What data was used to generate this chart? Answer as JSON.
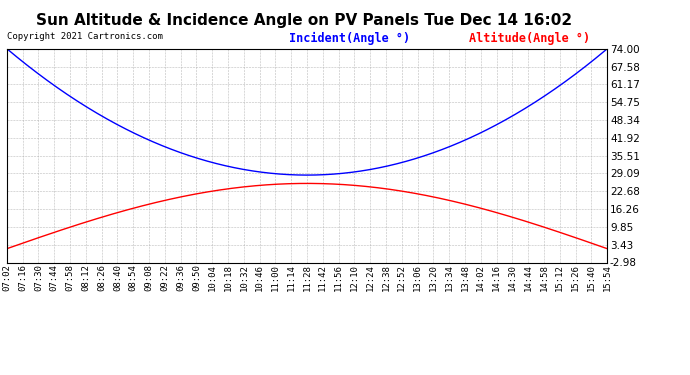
{
  "title": "Sun Altitude & Incidence Angle on PV Panels Tue Dec 14 16:02",
  "copyright": "Copyright 2021 Cartronics.com",
  "legend_incident": "Incident(Angle °)",
  "legend_altitude": "Altitude(Angle °)",
  "yticks": [
    74.0,
    67.58,
    61.17,
    54.75,
    48.34,
    41.92,
    35.51,
    29.09,
    22.68,
    16.26,
    9.85,
    3.43,
    -2.98
  ],
  "ymin": -2.98,
  "ymax": 74.0,
  "xtick_labels": [
    "07:02",
    "07:16",
    "07:30",
    "07:44",
    "07:58",
    "08:12",
    "08:26",
    "08:40",
    "08:54",
    "09:08",
    "09:22",
    "09:36",
    "09:50",
    "10:04",
    "10:18",
    "10:32",
    "10:46",
    "11:00",
    "11:14",
    "11:28",
    "11:42",
    "11:56",
    "12:10",
    "12:24",
    "12:38",
    "12:52",
    "13:06",
    "13:20",
    "13:34",
    "13:48",
    "14:02",
    "14:16",
    "14:30",
    "14:44",
    "14:58",
    "15:12",
    "15:26",
    "15:40",
    "15:54"
  ],
  "incident_color": "blue",
  "altitude_color": "red",
  "background_color": "#ffffff",
  "grid_color": "#aaaaaa",
  "title_fontsize": 11,
  "ytick_fontsize": 7.5,
  "xtick_fontsize": 6.5,
  "legend_fontsize": 8.5,
  "copyright_fontsize": 6.5
}
